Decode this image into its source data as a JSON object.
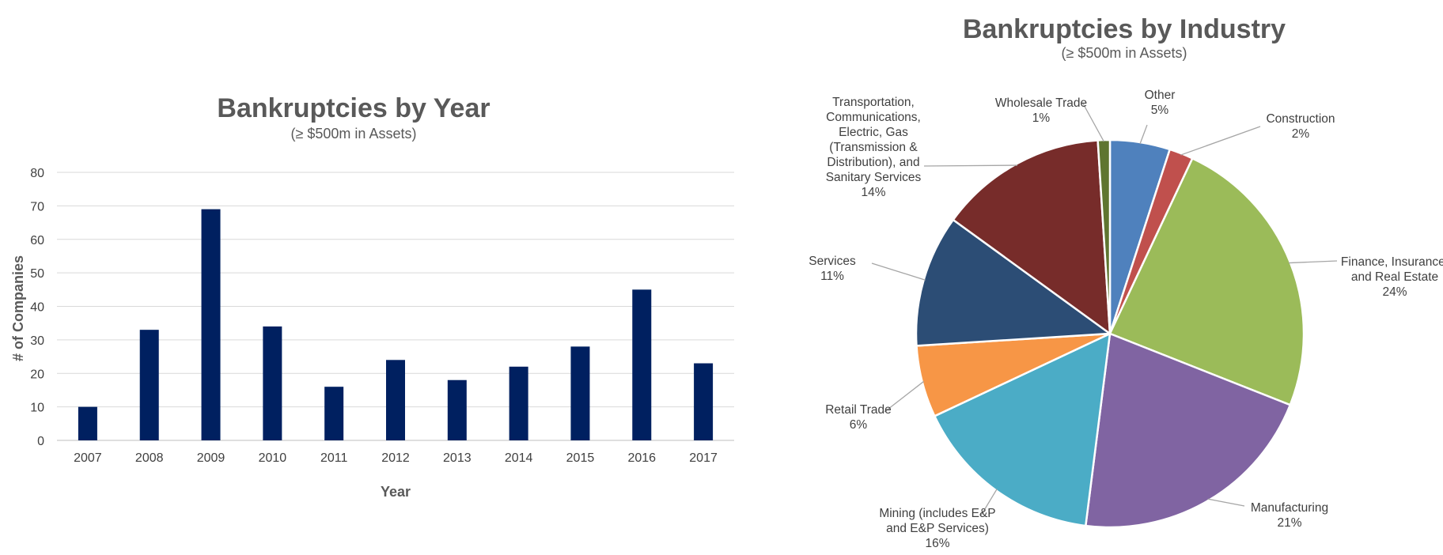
{
  "chart_data": [
    {
      "type": "bar",
      "title": "Bankruptcies by Year",
      "subtitle": "(≥ $500m in Assets)",
      "xlabel": "Year",
      "ylabel": "# of Companies",
      "ylim": [
        0,
        80
      ],
      "yticks": [
        "0",
        "10",
        "20",
        "30",
        "40",
        "50",
        "60",
        "70",
        "80"
      ],
      "grid": true,
      "categories": [
        "2007",
        "2008",
        "2009",
        "2010",
        "2011",
        "2012",
        "2013",
        "2014",
        "2015",
        "2016",
        "2017"
      ],
      "values": [
        10,
        33,
        69,
        34,
        16,
        24,
        18,
        22,
        28,
        45,
        23
      ],
      "color": "#002060"
    },
    {
      "type": "pie",
      "title": "Bankruptcies by Industry",
      "subtitle": "(≥ $500m in Assets)",
      "slices": [
        {
          "lines": [
            "Other",
            "5%"
          ],
          "value": 5,
          "color": "#4F81BD"
        },
        {
          "lines": [
            "Construction",
            "2%"
          ],
          "value": 2,
          "color": "#C0504D"
        },
        {
          "lines": [
            "Finance, Insurance,",
            "and Real Estate",
            "24%"
          ],
          "value": 24,
          "color": "#9BBB59"
        },
        {
          "lines": [
            "Manufacturing",
            "21%"
          ],
          "value": 21,
          "color": "#8064A2"
        },
        {
          "lines": [
            "Mining (includes E&P",
            "and E&P Services)",
            "16%"
          ],
          "value": 16,
          "color": "#4BACC6"
        },
        {
          "lines": [
            "Retail Trade",
            "6%"
          ],
          "value": 6,
          "color": "#F79646"
        },
        {
          "lines": [
            "Services",
            "11%"
          ],
          "value": 11,
          "color": "#2C4D75"
        },
        {
          "lines": [
            "Transportation,",
            "Communications,",
            "Electric, Gas",
            "(Transmission &",
            "Distribution), and",
            "Sanitary Services",
            "14%"
          ],
          "value": 14,
          "color": "#772C2A"
        },
        {
          "lines": [
            "Wholesale Trade",
            "1%"
          ],
          "value": 1,
          "color": "#5F7530"
        }
      ]
    }
  ]
}
